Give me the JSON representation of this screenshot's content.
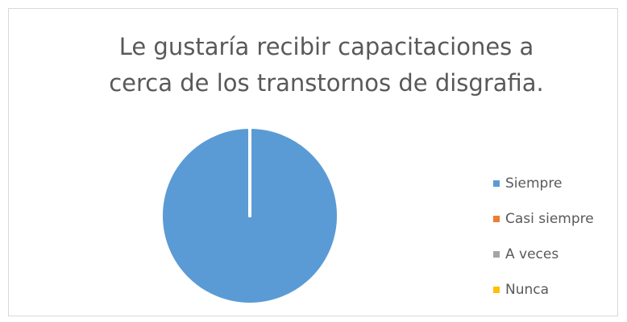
{
  "chart_data": {
    "type": "pie",
    "title": "Le gustaría recibir capacitaciones a cerca de los transtornos de disgrafia.",
    "categories": [
      "Siempre",
      "Casi siempre",
      "A veces",
      "Nunca"
    ],
    "values": [
      100,
      0,
      0,
      0
    ],
    "colors": [
      "#5b9bd5",
      "#ed7d31",
      "#a5a5a5",
      "#ffc000"
    ],
    "legend": "right"
  }
}
